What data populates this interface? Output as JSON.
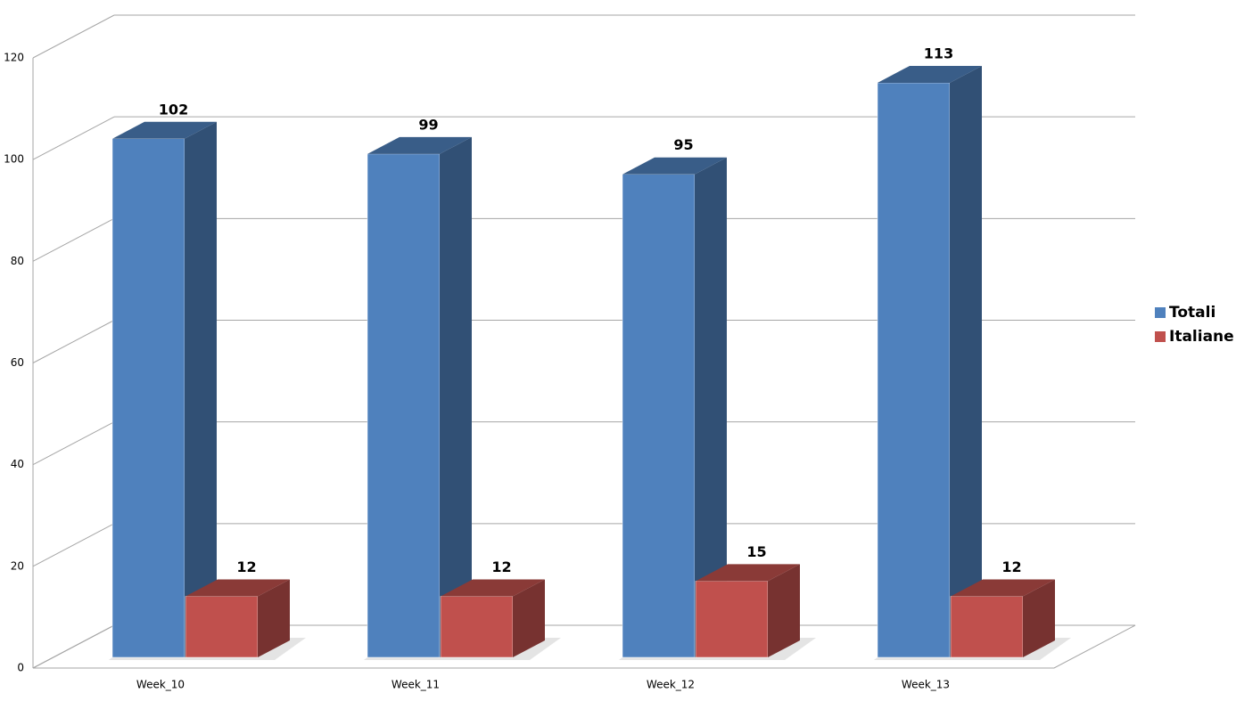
{
  "chart_data": {
    "type": "bar3d",
    "categories": [
      "Week_10",
      "Week_11",
      "Week_12",
      "Week_13"
    ],
    "series": [
      {
        "name": "Totali",
        "color": "#4f81bd",
        "values": [
          102,
          99,
          95,
          113
        ]
      },
      {
        "name": "Italiane",
        "color": "#c0504d",
        "values": [
          12,
          12,
          15,
          12
        ]
      }
    ],
    "ylim": [
      0,
      120
    ],
    "yticks": [
      0,
      20,
      40,
      60,
      80,
      100,
      120
    ],
    "grid": true,
    "legend": "right"
  }
}
